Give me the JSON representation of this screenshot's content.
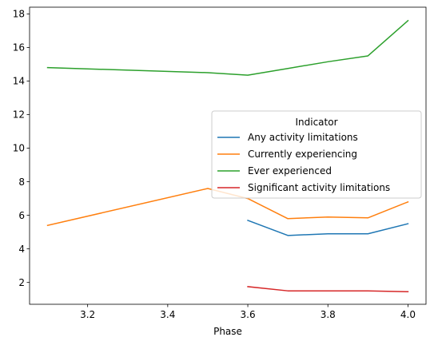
{
  "chart_data": {
    "type": "line",
    "title": "",
    "xlabel": "Phase",
    "ylabel": "",
    "xlim": [
      3.055,
      4.045
    ],
    "ylim": [
      0.7,
      18.4
    ],
    "xticks": [
      3.2,
      3.4,
      3.6,
      3.8,
      4.0
    ],
    "xtick_labels": [
      "3.2",
      "3.4",
      "3.6",
      "3.8",
      "4.0"
    ],
    "yticks": [
      2,
      4,
      6,
      8,
      10,
      12,
      14,
      16,
      18
    ],
    "ytick_labels": [
      "2",
      "4",
      "6",
      "8",
      "10",
      "12",
      "14",
      "16",
      "18"
    ],
    "grid": false,
    "legend": {
      "title": "Indicator",
      "placement": "center-right"
    },
    "series": [
      {
        "name": "Any activity limitations",
        "color": "#1f77b4",
        "x": [
          3.6,
          3.7,
          3.8,
          3.9,
          4.0
        ],
        "y": [
          5.7,
          4.8,
          4.9,
          4.9,
          5.5
        ]
      },
      {
        "name": "Currently experiencing",
        "color": "#ff7f0e",
        "x": [
          3.1,
          3.5,
          3.6,
          3.7,
          3.8,
          3.9,
          4.0
        ],
        "y": [
          5.4,
          7.6,
          7.0,
          5.8,
          5.9,
          5.85,
          6.8
        ]
      },
      {
        "name": "Ever experienced",
        "color": "#2ca02c",
        "x": [
          3.1,
          3.5,
          3.6,
          3.7,
          3.8,
          3.9,
          4.0
        ],
        "y": [
          14.8,
          14.5,
          14.35,
          14.75,
          15.15,
          15.5,
          17.6
        ]
      },
      {
        "name": "Significant activity limitations",
        "color": "#d62728",
        "x": [
          3.6,
          3.7,
          3.8,
          3.9,
          4.0
        ],
        "y": [
          1.75,
          1.5,
          1.5,
          1.5,
          1.45
        ]
      }
    ]
  }
}
